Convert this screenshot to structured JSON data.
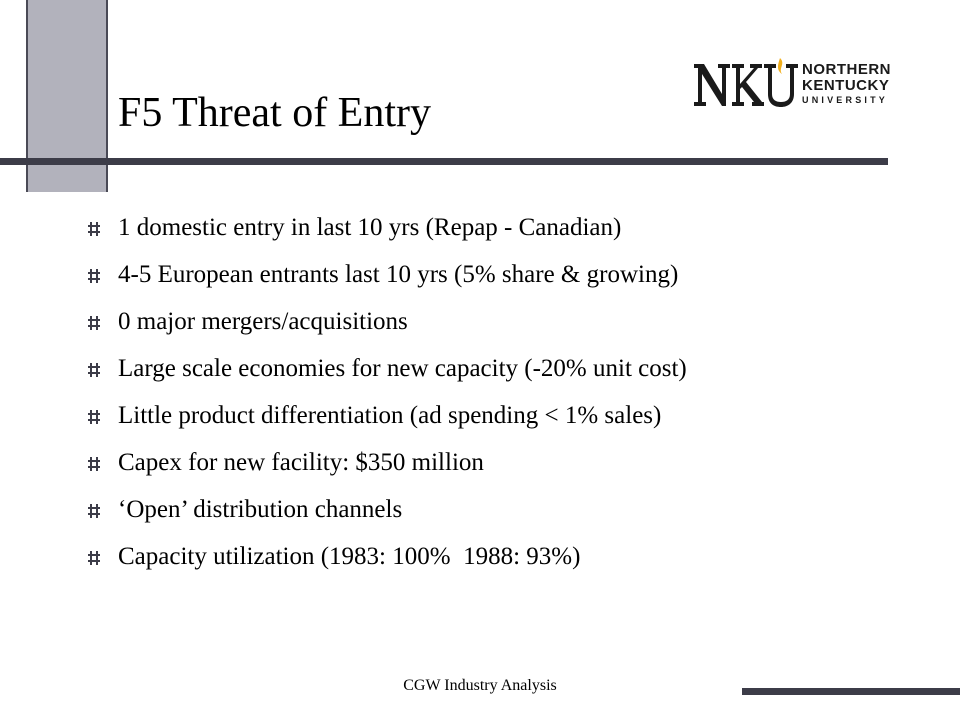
{
  "slide": {
    "title": "F5 Threat of Entry",
    "logo": {
      "line1": "NORTHERN",
      "line2": "KENTUCKY",
      "line3": "UNIVERSITY"
    },
    "bullets": [
      "1 domestic entry in last 10 yrs (Repap - Canadian)",
      "4-5 European entrants last 10 yrs (5% share & growing)",
      "0 major mergers/acquisitions",
      "Large scale economies for new capacity (-20% unit cost)",
      "Little product differentiation (ad spending < 1% sales)",
      "Capex for new facility: $350 million",
      "‘Open’ distribution channels",
      "Capacity utilization (1983: 100%  1988: 93%)"
    ],
    "footer": "CGW Industry Analysis"
  },
  "colors": {
    "accent_bar": "#3c3c48",
    "side_bar": "#b2b2bc",
    "logo_flame": "#f2b01e"
  }
}
